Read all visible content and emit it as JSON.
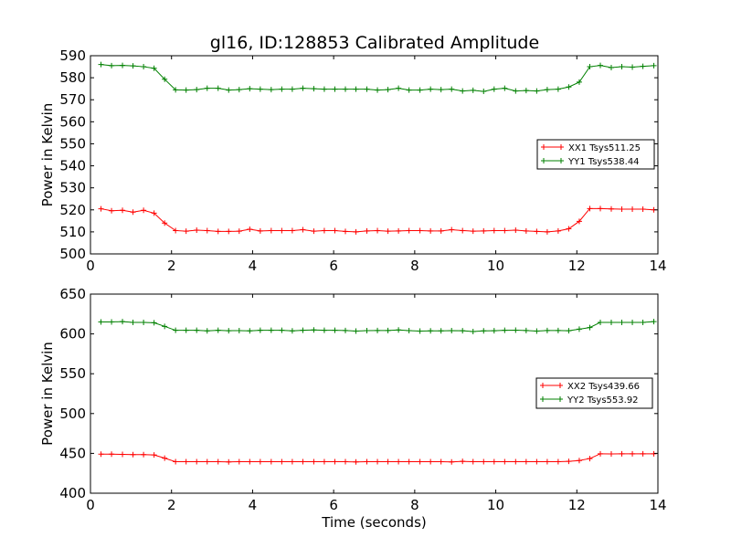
{
  "title": "gl16, ID:128853 Calibrated Amplitude",
  "colors": {
    "xx": "#ff0000",
    "yy": "#008000"
  },
  "chart_data": [
    {
      "type": "line",
      "xlabel": "",
      "ylabel": "Power in Kelvin",
      "xlim": [
        0,
        14
      ],
      "ylim": [
        500,
        590
      ],
      "xticks": [
        "0",
        "2",
        "4",
        "6",
        "8",
        "10",
        "12",
        "14"
      ],
      "yticks": [
        "500",
        "510",
        "520",
        "530",
        "540",
        "550",
        "560",
        "570",
        "580",
        "590"
      ],
      "legend_position": "center-right",
      "x": [
        0.26,
        0.52,
        0.79,
        1.05,
        1.31,
        1.57,
        1.83,
        2.1,
        2.36,
        2.62,
        2.88,
        3.15,
        3.41,
        3.67,
        3.93,
        4.19,
        4.46,
        4.72,
        4.98,
        5.24,
        5.51,
        5.77,
        6.03,
        6.29,
        6.55,
        6.82,
        7.08,
        7.34,
        7.6,
        7.86,
        8.13,
        8.39,
        8.65,
        8.91,
        9.18,
        9.44,
        9.7,
        9.96,
        10.22,
        10.49,
        10.75,
        11.01,
        11.27,
        11.54,
        11.8,
        12.06,
        12.32,
        12.58,
        12.85,
        13.11,
        13.37,
        13.63,
        13.9
      ],
      "series": [
        {
          "name": "XX1 Tsys511.25",
          "color": "#ff0000",
          "values": [
            520.5,
            519.6,
            519.8,
            519.0,
            519.8,
            518.5,
            514.0,
            510.6,
            510.3,
            510.8,
            510.6,
            510.2,
            510.2,
            510.3,
            511.2,
            510.4,
            510.6,
            510.6,
            510.6,
            511.0,
            510.3,
            510.6,
            510.6,
            510.2,
            510.0,
            510.4,
            510.6,
            510.3,
            510.4,
            510.6,
            510.6,
            510.4,
            510.4,
            511.0,
            510.6,
            510.3,
            510.4,
            510.6,
            510.6,
            510.8,
            510.4,
            510.2,
            510.0,
            510.4,
            511.4,
            514.8,
            520.6,
            520.6,
            520.4,
            520.3,
            520.3,
            520.3,
            520.0
          ]
        },
        {
          "name": "YY1 Tsys538.44",
          "color": "#008000",
          "values": [
            586.0,
            585.5,
            585.6,
            585.4,
            585.0,
            584.3,
            579.3,
            574.5,
            574.4,
            574.6,
            575.2,
            575.2,
            574.4,
            574.6,
            575.0,
            574.8,
            574.6,
            574.8,
            574.8,
            575.2,
            575.0,
            574.8,
            574.8,
            574.8,
            574.8,
            574.8,
            574.4,
            574.6,
            575.2,
            574.4,
            574.4,
            574.8,
            574.6,
            574.8,
            574.0,
            574.3,
            573.8,
            574.8,
            575.2,
            574.0,
            574.2,
            574.0,
            574.6,
            574.8,
            575.8,
            578.0,
            585.0,
            585.6,
            584.6,
            585.0,
            584.8,
            585.2,
            585.5
          ]
        }
      ]
    },
    {
      "type": "line",
      "xlabel": "Time (seconds)",
      "ylabel": "Power in Kelvin",
      "xlim": [
        0,
        14
      ],
      "ylim": [
        400,
        650
      ],
      "xticks": [
        "0",
        "2",
        "4",
        "6",
        "8",
        "10",
        "12",
        "14"
      ],
      "yticks": [
        "400",
        "450",
        "500",
        "550",
        "600",
        "650"
      ],
      "legend_position": "center-right",
      "x": [
        0.26,
        0.52,
        0.79,
        1.05,
        1.31,
        1.57,
        1.83,
        2.1,
        2.36,
        2.62,
        2.88,
        3.15,
        3.41,
        3.67,
        3.93,
        4.19,
        4.46,
        4.72,
        4.98,
        5.24,
        5.51,
        5.77,
        6.03,
        6.29,
        6.55,
        6.82,
        7.08,
        7.34,
        7.6,
        7.86,
        8.13,
        8.39,
        8.65,
        8.91,
        9.18,
        9.44,
        9.7,
        9.96,
        10.22,
        10.49,
        10.75,
        11.01,
        11.27,
        11.54,
        11.8,
        12.06,
        12.32,
        12.58,
        12.85,
        13.11,
        13.37,
        13.63,
        13.9
      ],
      "series": [
        {
          "name": "XX2 Tsys439.66",
          "color": "#ff0000",
          "values": [
            449.0,
            449.0,
            448.8,
            448.5,
            448.5,
            448.0,
            444.0,
            439.5,
            439.5,
            439.5,
            439.5,
            439.5,
            439.3,
            439.5,
            439.5,
            439.5,
            439.5,
            439.5,
            439.5,
            439.5,
            439.6,
            439.6,
            439.5,
            439.5,
            439.3,
            439.5,
            439.5,
            439.5,
            439.5,
            439.5,
            439.6,
            439.5,
            439.5,
            439.3,
            440.0,
            439.5,
            439.5,
            439.5,
            439.5,
            439.5,
            439.5,
            439.5,
            439.5,
            439.5,
            440.0,
            441.0,
            443.5,
            449.5,
            449.3,
            449.5,
            449.5,
            449.5,
            449.5
          ]
        },
        {
          "name": "YY2 Tsys553.92",
          "color": "#008000",
          "values": [
            615.0,
            615.0,
            615.5,
            614.5,
            614.5,
            614.0,
            609.5,
            604.5,
            604.5,
            604.5,
            603.8,
            604.5,
            604.0,
            604.2,
            603.8,
            604.5,
            604.5,
            604.5,
            603.8,
            604.5,
            605.0,
            604.5,
            604.5,
            604.3,
            603.5,
            604.2,
            604.3,
            604.3,
            605.0,
            604.2,
            603.5,
            603.8,
            603.8,
            604.2,
            604.0,
            603.0,
            603.8,
            604.0,
            604.5,
            604.7,
            604.3,
            603.6,
            604.3,
            604.3,
            604.0,
            606.0,
            608.0,
            614.5,
            614.5,
            614.5,
            614.5,
            614.5,
            615.5
          ]
        }
      ]
    }
  ]
}
